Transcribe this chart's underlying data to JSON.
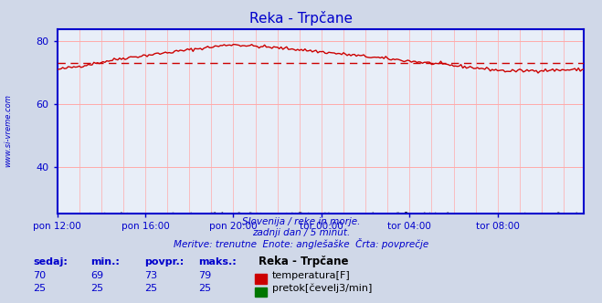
{
  "title": "Reka - Trpčane",
  "bg_color": "#d0d8e8",
  "plot_bg_color": "#e8eef8",
  "grid_color": "#ffaaaa",
  "axis_color": "#0000cc",
  "text_color": "#0000cc",
  "ylabel_text": "www.si-vreme.com",
  "temp_color": "#cc0000",
  "flow_color": "#007700",
  "flow_line_color": "#000000",
  "avg_line_color": "#cc0000",
  "xlim": [
    0,
    287
  ],
  "ylim": [
    25,
    84
  ],
  "yticks": [
    40,
    60,
    80
  ],
  "xtick_labels": [
    "pon 12:00",
    "pon 16:00",
    "pon 20:00",
    "tor 00:00",
    "tor 04:00",
    "tor 08:00"
  ],
  "xtick_positions": [
    0,
    48,
    96,
    144,
    192,
    240
  ],
  "avg_temp": 73,
  "subtitle1": "Slovenija / reke in morje.",
  "subtitle2": "zadnji dan / 5 minut.",
  "subtitle3": "Meritve: trenutne  Enote: anglešaške  Črta: povprečje",
  "table_headers": [
    "sedaj:",
    "min.:",
    "povpr.:",
    "maks.:"
  ],
  "temp_row": [
    70,
    69,
    73,
    79
  ],
  "flow_row": [
    25,
    25,
    25,
    25
  ],
  "legend_station": "Reka - Trpčane",
  "legend_temp": "temperatura[F]",
  "legend_flow": "pretok[čevelj3/min]"
}
